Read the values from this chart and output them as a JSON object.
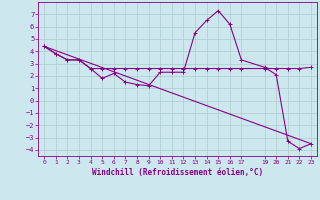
{
  "background_color": "#cce8ee",
  "grid_color": "#aacccc",
  "line_color": "#880088",
  "xlabel": "Windchill (Refroidissement éolien,°C)",
  "xlim": [
    -0.5,
    23.5
  ],
  "ylim": [
    -4.5,
    8.0
  ],
  "xticks": [
    0,
    1,
    2,
    3,
    4,
    5,
    6,
    7,
    8,
    9,
    10,
    11,
    12,
    13,
    14,
    15,
    16,
    17,
    19,
    20,
    21,
    22,
    23
  ],
  "yticks": [
    -4,
    -3,
    -2,
    -1,
    0,
    1,
    2,
    3,
    4,
    5,
    6,
    7
  ],
  "series1_x": [
    0,
    1,
    2,
    3,
    4,
    5,
    6,
    7,
    8,
    9,
    10,
    11,
    12,
    13,
    14,
    15,
    16,
    17,
    19,
    20,
    21,
    22,
    23
  ],
  "series1_y": [
    4.4,
    3.8,
    3.3,
    3.3,
    2.6,
    1.8,
    2.2,
    1.5,
    1.3,
    1.2,
    2.3,
    2.3,
    2.3,
    5.5,
    6.5,
    7.3,
    6.2,
    3.3,
    2.7,
    2.1,
    -3.3,
    -3.9,
    -3.5
  ],
  "series2_x": [
    0,
    1,
    2,
    3,
    4,
    5,
    6,
    7,
    8,
    9,
    10,
    11,
    12,
    13,
    14,
    15,
    16,
    17,
    19,
    20,
    21,
    22,
    23
  ],
  "series2_y": [
    4.4,
    3.8,
    3.3,
    3.3,
    2.6,
    2.6,
    2.6,
    2.6,
    2.6,
    2.6,
    2.6,
    2.6,
    2.6,
    2.6,
    2.6,
    2.6,
    2.6,
    2.6,
    2.6,
    2.6,
    2.6,
    2.6,
    2.7
  ],
  "series3_x": [
    0,
    23
  ],
  "series3_y": [
    4.4,
    -3.5
  ]
}
